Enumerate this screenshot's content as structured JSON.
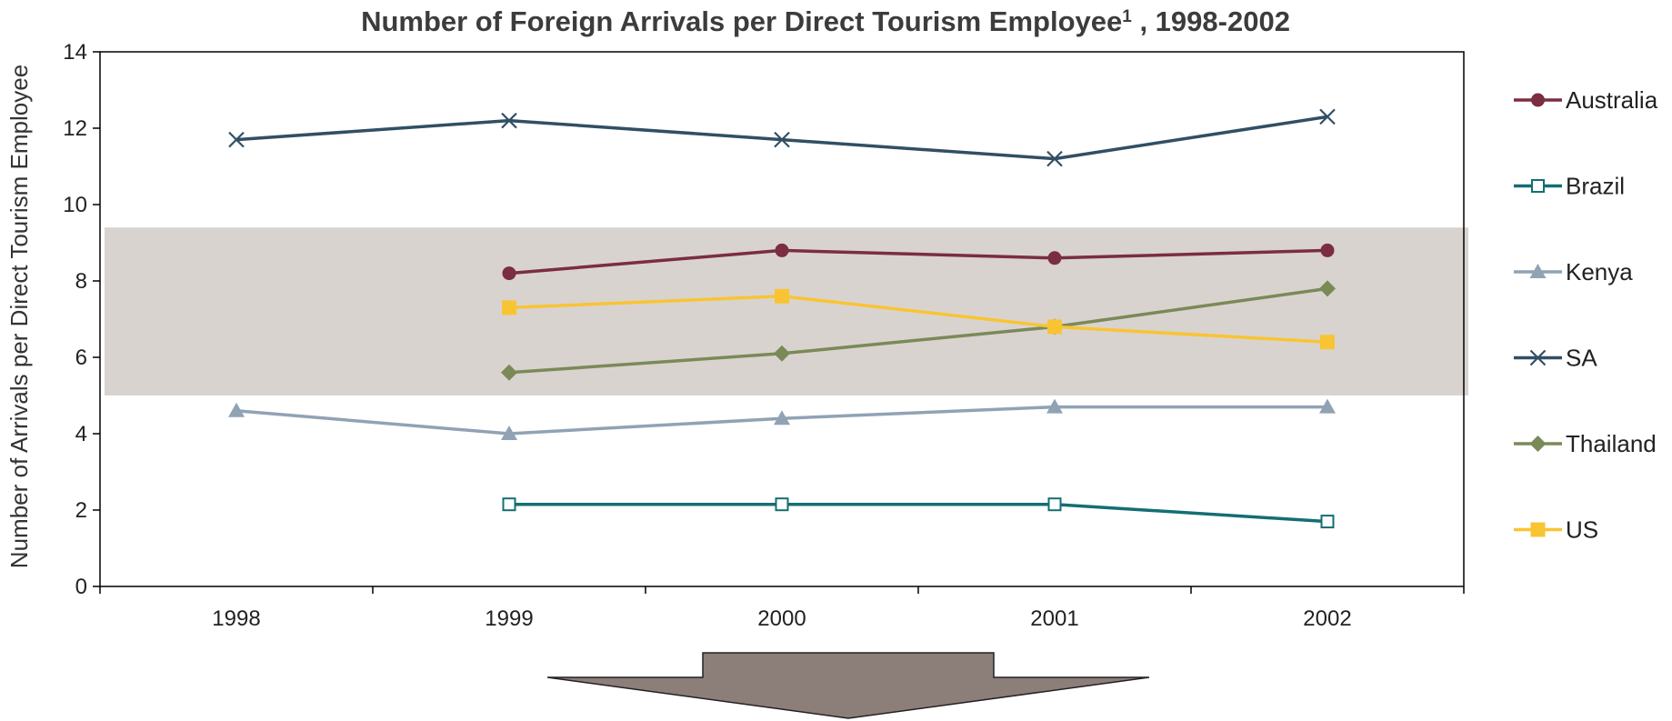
{
  "chart_data": {
    "type": "line",
    "title": "Number of Foreign Arrivals per Direct Tourism Employee",
    "title_superscript": "1",
    "title_suffix": " , 1998-2002",
    "xlabel": "",
    "ylabel": "Number of Arrivals per Direct Tourism Employee",
    "categories": [
      "1998",
      "1999",
      "2000",
      "2001",
      "2002"
    ],
    "ylim": [
      0,
      14
    ],
    "yticks": [
      0,
      2,
      4,
      6,
      8,
      10,
      12,
      14
    ],
    "grid": false,
    "legend_position": "right",
    "highlight_band": {
      "y_from": 5.0,
      "y_to": 9.4,
      "color": "#d9d3d0"
    },
    "down_arrow_color": "#8c7e79",
    "series": [
      {
        "name": "Australia",
        "color": "#7b2d42",
        "marker": "circle",
        "values": [
          null,
          8.2,
          8.8,
          8.6,
          8.8
        ]
      },
      {
        "name": "Brazil",
        "color": "#146e73",
        "marker": "square-open",
        "values": [
          null,
          2.15,
          2.15,
          2.15,
          1.7
        ]
      },
      {
        "name": "Kenya",
        "color": "#8fa3b4",
        "marker": "triangle",
        "values": [
          4.6,
          4.0,
          4.4,
          4.7,
          4.7
        ]
      },
      {
        "name": "SA",
        "color": "#314f64",
        "marker": "x",
        "values": [
          11.7,
          12.2,
          11.7,
          11.2,
          12.3
        ]
      },
      {
        "name": "Thailand",
        "color": "#7a8a57",
        "marker": "diamond",
        "values": [
          null,
          5.6,
          6.1,
          6.8,
          7.8
        ]
      },
      {
        "name": "US",
        "color": "#f9c433",
        "marker": "square",
        "values": [
          null,
          7.3,
          7.6,
          6.8,
          6.4
        ]
      }
    ]
  }
}
